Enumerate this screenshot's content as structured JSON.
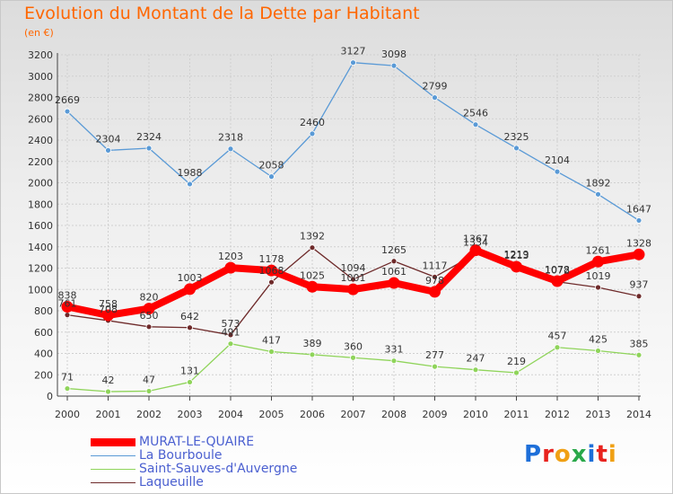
{
  "header": {
    "title": "Evolution du Montant de la Dette par Habitant",
    "subtitle": "(en €)"
  },
  "logo": {
    "text": "Proxiti",
    "letters": [
      "P",
      "r",
      "o",
      "x",
      "i",
      "t",
      "i"
    ],
    "colors": [
      "#1e6fd9",
      "#e8231e",
      "#f0a014",
      "#2aa84a",
      "#1e6fd9",
      "#e8231e",
      "#f0a014"
    ]
  },
  "chart_data": {
    "type": "line",
    "categories": [
      "2000",
      "2001",
      "2002",
      "2003",
      "2004",
      "2005",
      "2006",
      "2007",
      "2008",
      "2009",
      "2010",
      "2011",
      "2012",
      "2013",
      "2014"
    ],
    "ylim": [
      0,
      3200
    ],
    "yticks": [
      0,
      200,
      400,
      600,
      800,
      1000,
      1200,
      1400,
      1600,
      1800,
      2000,
      2200,
      2400,
      2600,
      2800,
      3000,
      3200
    ],
    "grid": true,
    "legend_position": "bottom-left",
    "series": [
      {
        "name": "MURAT-LE-QUAIRE",
        "color": "#ff0000",
        "values": [
          838,
          758,
          820,
          1003,
          1203,
          1178,
          1025,
          1001,
          1061,
          978,
          1367,
          1213,
          1078,
          1261,
          1328
        ]
      },
      {
        "name": "La Bourboule",
        "color": "#5a9ad6",
        "values": [
          2669,
          2304,
          2324,
          1988,
          2318,
          2058,
          2460,
          3127,
          3098,
          2799,
          2546,
          2325,
          2104,
          1892,
          1647
        ]
      },
      {
        "name": "Saint-Sauves-d'Auvergne",
        "color": "#8fd45a",
        "values": [
          71,
          42,
          47,
          131,
          491,
          417,
          389,
          360,
          331,
          277,
          247,
          219,
          457,
          425,
          385
        ]
      },
      {
        "name": "Laqueuille",
        "color": "#6e2a2a",
        "values": [
          761,
          708,
          650,
          642,
          573,
          1068,
          1392,
          1094,
          1265,
          1117,
          1334,
          1219,
          1072,
          1019,
          937
        ]
      }
    ]
  },
  "legend": {
    "items": [
      {
        "label": "MURAT-LE-QUAIRE",
        "color": "#ff0000"
      },
      {
        "label": "La Bourboule",
        "color": "#5a9ad6"
      },
      {
        "label": "Saint-Sauves-d'Auvergne",
        "color": "#8fd45a"
      },
      {
        "label": "Laqueuille",
        "color": "#6e2a2a"
      }
    ]
  }
}
